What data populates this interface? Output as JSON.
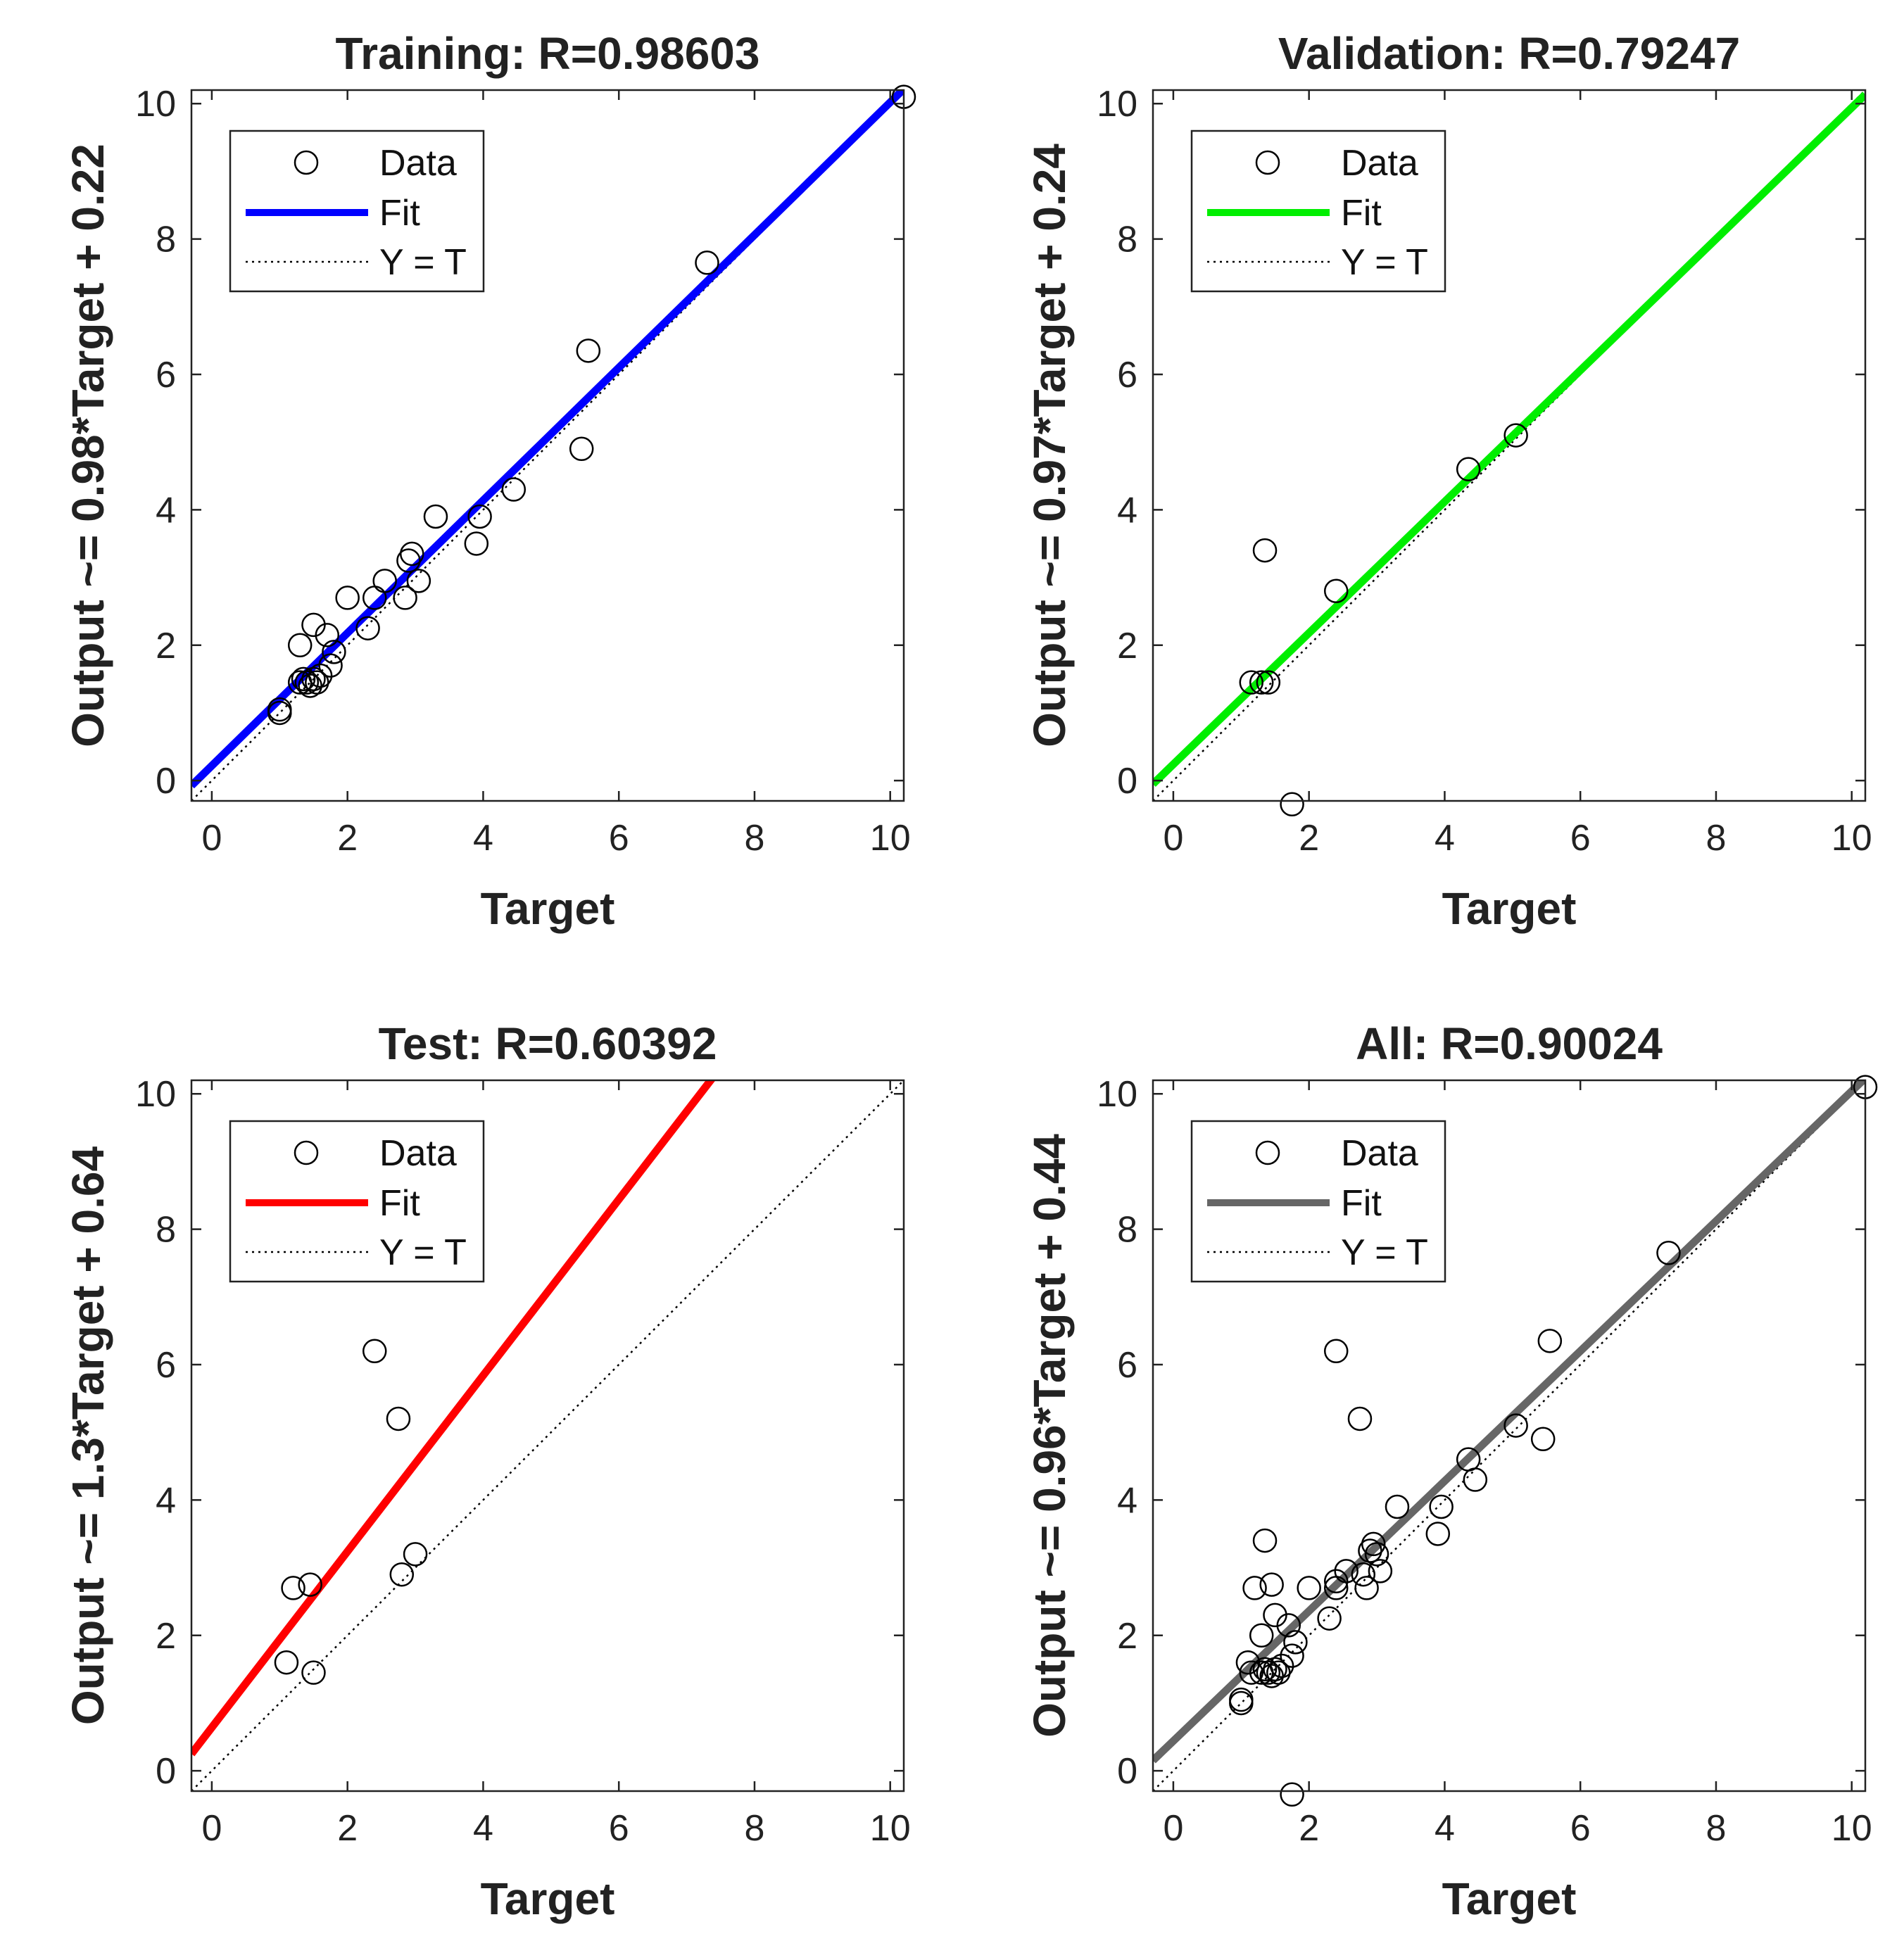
{
  "chart_data": [
    {
      "type": "scatter",
      "title": "Training: R=0.98603",
      "xlabel": "Target",
      "ylabel": "Output ~= 0.98*Target + 0.22",
      "xlim": [
        -0.3,
        10.2
      ],
      "ylim": [
        -0.3,
        10.2
      ],
      "xticks": [
        0,
        2,
        4,
        6,
        8,
        10
      ],
      "yticks": [
        0,
        2,
        4,
        6,
        8,
        10
      ],
      "fit": {
        "slope": 0.98,
        "intercept": 0.22,
        "color": "#0000ff"
      },
      "legend": {
        "data": "Data",
        "fit": "Fit",
        "identity": "Y = T"
      },
      "points": [
        [
          1.0,
          1.05
        ],
        [
          1.0,
          1.0
        ],
        [
          1.3,
          1.45
        ],
        [
          1.35,
          1.5
        ],
        [
          1.4,
          1.45
        ],
        [
          1.45,
          1.4
        ],
        [
          1.5,
          1.5
        ],
        [
          1.55,
          1.45
        ],
        [
          1.6,
          1.55
        ],
        [
          1.3,
          2.0
        ],
        [
          1.5,
          2.3
        ],
        [
          1.7,
          2.15
        ],
        [
          1.75,
          1.7
        ],
        [
          1.8,
          1.9
        ],
        [
          2.0,
          2.7
        ],
        [
          2.3,
          2.25
        ],
        [
          2.4,
          2.7
        ],
        [
          2.55,
          2.95
        ],
        [
          2.85,
          2.7
        ],
        [
          2.9,
          3.25
        ],
        [
          2.95,
          3.35
        ],
        [
          3.05,
          2.95
        ],
        [
          3.3,
          3.9
        ],
        [
          3.9,
          3.5
        ],
        [
          3.95,
          3.9
        ],
        [
          4.45,
          4.3
        ],
        [
          5.45,
          4.9
        ],
        [
          5.55,
          6.35
        ],
        [
          7.3,
          7.65
        ],
        [
          10.2,
          10.1
        ]
      ]
    },
    {
      "type": "scatter",
      "title": "Validation: R=0.79247",
      "xlabel": "Target",
      "ylabel": "Output ~= 0.97*Target + 0.24",
      "xlim": [
        -0.3,
        10.2
      ],
      "ylim": [
        -0.3,
        10.2
      ],
      "xticks": [
        0,
        2,
        4,
        6,
        8,
        10
      ],
      "yticks": [
        0,
        2,
        4,
        6,
        8,
        10
      ],
      "fit": {
        "slope": 0.97,
        "intercept": 0.24,
        "color": "#00ee00"
      },
      "legend": {
        "data": "Data",
        "fit": "Fit",
        "identity": "Y = T"
      },
      "points": [
        [
          1.15,
          1.45
        ],
        [
          1.3,
          1.45
        ],
        [
          1.4,
          1.45
        ],
        [
          1.35,
          3.4
        ],
        [
          1.75,
          -0.35
        ],
        [
          2.4,
          2.8
        ],
        [
          4.35,
          4.6
        ],
        [
          5.05,
          5.1
        ]
      ]
    },
    {
      "type": "scatter",
      "title": "Test: R=0.60392",
      "xlabel": "Target",
      "ylabel": "Output ~= 1.3*Target + 0.64",
      "xlim": [
        -0.3,
        10.2
      ],
      "ylim": [
        -0.3,
        10.2
      ],
      "xticks": [
        0,
        2,
        4,
        6,
        8,
        10
      ],
      "yticks": [
        0,
        2,
        4,
        6,
        8,
        10
      ],
      "fit": {
        "slope": 1.3,
        "intercept": 0.64,
        "color": "#ff0000"
      },
      "legend": {
        "data": "Data",
        "fit": "Fit",
        "identity": "Y = T"
      },
      "points": [
        [
          1.1,
          1.6
        ],
        [
          1.5,
          1.45
        ],
        [
          1.2,
          2.7
        ],
        [
          1.45,
          2.75
        ],
        [
          2.4,
          6.2
        ],
        [
          2.75,
          5.2
        ],
        [
          2.8,
          2.9
        ],
        [
          3.0,
          3.2
        ]
      ]
    },
    {
      "type": "scatter",
      "title": "All: R=0.90024",
      "xlabel": "Target",
      "ylabel": "Output ~= 0.96*Target + 0.44",
      "xlim": [
        -0.3,
        10.2
      ],
      "ylim": [
        -0.3,
        10.2
      ],
      "xticks": [
        0,
        2,
        4,
        6,
        8,
        10
      ],
      "yticks": [
        0,
        2,
        4,
        6,
        8,
        10
      ],
      "fit": {
        "slope": 0.96,
        "intercept": 0.44,
        "color": "#666666"
      },
      "legend": {
        "data": "Data",
        "fit": "Fit",
        "identity": "Y = T"
      },
      "points": [
        [
          1.0,
          1.05
        ],
        [
          1.0,
          1.0
        ],
        [
          1.1,
          1.6
        ],
        [
          1.15,
          1.45
        ],
        [
          1.2,
          2.7
        ],
        [
          1.3,
          1.45
        ],
        [
          1.35,
          1.5
        ],
        [
          1.4,
          1.45
        ],
        [
          1.45,
          1.4
        ],
        [
          1.5,
          1.5
        ],
        [
          1.55,
          1.45
        ],
        [
          1.6,
          1.55
        ],
        [
          1.3,
          2.0
        ],
        [
          1.5,
          2.3
        ],
        [
          1.45,
          2.75
        ],
        [
          1.35,
          3.4
        ],
        [
          1.7,
          2.15
        ],
        [
          1.75,
          1.7
        ],
        [
          1.8,
          1.9
        ],
        [
          1.75,
          -0.35
        ],
        [
          2.0,
          2.7
        ],
        [
          2.3,
          2.25
        ],
        [
          2.4,
          2.7
        ],
        [
          2.4,
          2.8
        ],
        [
          2.4,
          6.2
        ],
        [
          2.55,
          2.95
        ],
        [
          2.75,
          5.2
        ],
        [
          2.8,
          2.9
        ],
        [
          2.85,
          2.7
        ],
        [
          2.9,
          3.25
        ],
        [
          2.95,
          3.35
        ],
        [
          3.0,
          3.2
        ],
        [
          3.05,
          2.95
        ],
        [
          3.3,
          3.9
        ],
        [
          3.9,
          3.5
        ],
        [
          3.95,
          3.9
        ],
        [
          4.35,
          4.6
        ],
        [
          4.45,
          4.3
        ],
        [
          5.05,
          5.1
        ],
        [
          5.45,
          4.9
        ],
        [
          5.55,
          6.35
        ],
        [
          7.3,
          7.65
        ],
        [
          10.2,
          10.1
        ]
      ]
    }
  ]
}
